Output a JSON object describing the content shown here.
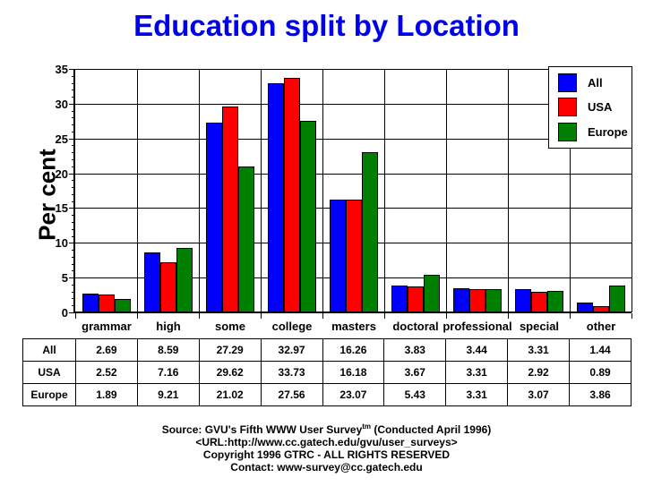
{
  "title": "Education split by Location",
  "y_axis": {
    "label": "Per cent",
    "ticks": [
      0,
      5,
      10,
      15,
      20,
      25,
      30,
      35
    ]
  },
  "chart_data": {
    "type": "bar",
    "title": "Education split by Location",
    "xlabel": "",
    "ylabel": "Per cent",
    "ylim": [
      0,
      35
    ],
    "ytick_interval": 5,
    "yminor_interval": 1,
    "grid": "on",
    "legend_position": "top-right",
    "categories": [
      "grammar",
      "high",
      "some",
      "college",
      "masters",
      "doctoral",
      "professional",
      "special",
      "other"
    ],
    "series": [
      {
        "name": "All",
        "color": "#0000FF",
        "values": [
          2.69,
          8.59,
          27.29,
          32.97,
          16.26,
          3.83,
          3.44,
          3.31,
          1.44
        ]
      },
      {
        "name": "USA",
        "color": "#FF0000",
        "values": [
          2.52,
          7.16,
          29.62,
          33.73,
          16.18,
          3.67,
          3.31,
          2.92,
          0.89
        ]
      },
      {
        "name": "Europe",
        "color": "#008000",
        "values": [
          1.89,
          9.21,
          21.02,
          27.56,
          23.07,
          5.43,
          3.31,
          3.07,
          3.86
        ]
      }
    ]
  },
  "table": {
    "rows": [
      {
        "label": "All",
        "values": [
          "2.69",
          "8.59",
          "27.29",
          "32.97",
          "16.26",
          "3.83",
          "3.44",
          "3.31",
          "1.44"
        ]
      },
      {
        "label": "USA",
        "values": [
          "2.52",
          "7.16",
          "29.62",
          "33.73",
          "16.18",
          "3.67",
          "3.31",
          "2.92",
          "0.89"
        ]
      },
      {
        "label": "Europe",
        "values": [
          "1.89",
          "9.21",
          "21.02",
          "27.56",
          "23.07",
          "5.43",
          "3.31",
          "3.07",
          "3.86"
        ]
      }
    ]
  },
  "footer": {
    "source_prefix": "Source: GVU's Fifth WWW User Survey",
    "source_superscript": "tm",
    "source_suffix": "  (Conducted April 1996)",
    "url_line": "<URL:http://www.cc.gatech.edu/gvu/user_surveys>",
    "copyright_line": "Copyright 1996 GTRC -  ALL RIGHTS RESERVED",
    "contact_line": "Contact: www-survey@cc.gatech.edu"
  },
  "colors": {
    "title": "#0000EE",
    "series_all": "#0000FF",
    "series_usa": "#FF0000",
    "series_europe": "#008000",
    "grid": "#000000",
    "background": "#FFFFFF"
  }
}
